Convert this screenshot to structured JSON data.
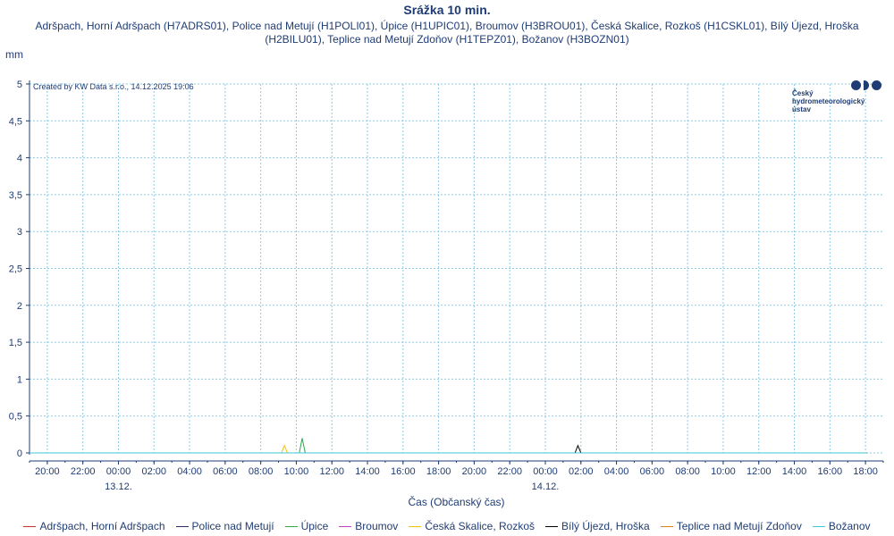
{
  "header": {
    "title": "Srážka 10 min.",
    "subtitle": "Adršpach, Horní Adršpach (H7ADRS01), Police nad Metují (H1POLI01), Úpice (H1UPIC01), Broumov (H3BROU01), Česká Skalice, Rozkoš (H1CSKL01), Bílý Újezd, Hroška (H2BILU01), Teplice nad Metují Zdoňov (H1TEPZ01), Božanov (H3BOZN01)",
    "y_unit": "mm",
    "created_by": "Created by KW Data s.r.o., 14.12.2025 19:06"
  },
  "logo": {
    "text": "Český\nhydrometeorologický\nústav",
    "color": "#1f3c74"
  },
  "chart_data": {
    "type": "line",
    "title": "Srážka 10 min.",
    "xlabel": "Čas (Občanský čas)",
    "ylabel": "mm",
    "ylim": [
      0,
      5
    ],
    "yticks": [
      "0",
      "0,5",
      "1",
      "1,5",
      "2",
      "2,5",
      "3",
      "3,5",
      "4",
      "4,5",
      "5"
    ],
    "xticks": [
      {
        "label": "20:00",
        "h": 20
      },
      {
        "label": "22:00",
        "h": 22
      },
      {
        "label": "00:00",
        "h": 24,
        "date": "13.12."
      },
      {
        "label": "02:00",
        "h": 26
      },
      {
        "label": "04:00",
        "h": 28
      },
      {
        "label": "06:00",
        "h": 30
      },
      {
        "label": "08:00",
        "h": 32
      },
      {
        "label": "10:00",
        "h": 34
      },
      {
        "label": "12:00",
        "h": 36
      },
      {
        "label": "14:00",
        "h": 38
      },
      {
        "label": "16:00",
        "h": 40
      },
      {
        "label": "18:00",
        "h": 42
      },
      {
        "label": "20:00",
        "h": 44
      },
      {
        "label": "22:00",
        "h": 46
      },
      {
        "label": "00:00",
        "h": 48,
        "date": "14.12."
      },
      {
        "label": "02:00",
        "h": 50
      },
      {
        "label": "04:00",
        "h": 52
      },
      {
        "label": "06:00",
        "h": 54
      },
      {
        "label": "08:00",
        "h": 56
      },
      {
        "label": "10:00",
        "h": 58
      },
      {
        "label": "12:00",
        "h": 60
      },
      {
        "label": "14:00",
        "h": 62
      },
      {
        "label": "16:00",
        "h": 64
      },
      {
        "label": "18:00",
        "h": 66
      }
    ],
    "x_range_hours": [
      19,
      67
    ],
    "grid": true,
    "legend_position": "bottom",
    "series": [
      {
        "name": "Adršpach, Horní Adršpach",
        "color": "#c0392b",
        "points": [
          [
            19,
            0
          ],
          [
            66.1,
            0
          ]
        ]
      },
      {
        "name": "Police nad Metují",
        "color": "#2c2c6e",
        "points": [
          [
            19,
            0
          ],
          [
            66.1,
            0
          ]
        ]
      },
      {
        "name": "Úpice",
        "color": "#2ea84a",
        "points": [
          [
            19,
            0
          ],
          [
            34.17,
            0
          ],
          [
            34.33,
            0.2
          ],
          [
            34.5,
            0
          ],
          [
            66.1,
            0
          ]
        ]
      },
      {
        "name": "Broumov",
        "color": "#c040c0",
        "points": [
          [
            19,
            0
          ],
          [
            66.1,
            0
          ]
        ]
      },
      {
        "name": "Česká Skalice, Rozkoš",
        "color": "#f2c200",
        "points": [
          [
            19,
            0
          ],
          [
            33.17,
            0
          ],
          [
            33.33,
            0.1
          ],
          [
            33.5,
            0
          ],
          [
            66.1,
            0
          ]
        ]
      },
      {
        "name": "Bílý Újezd, Hroška",
        "color": "#000000",
        "points": [
          [
            19,
            0
          ],
          [
            49.67,
            0
          ],
          [
            49.83,
            0.1
          ],
          [
            50.0,
            0
          ],
          [
            66.1,
            0
          ]
        ]
      },
      {
        "name": "Teplice nad Metují Zdoňov",
        "color": "#e07b1a",
        "points": [
          [
            19,
            0
          ],
          [
            66.1,
            0
          ]
        ]
      },
      {
        "name": "Božanov",
        "color": "#3fc7d6",
        "points": [
          [
            19,
            0
          ],
          [
            66.1,
            0
          ]
        ]
      }
    ]
  }
}
